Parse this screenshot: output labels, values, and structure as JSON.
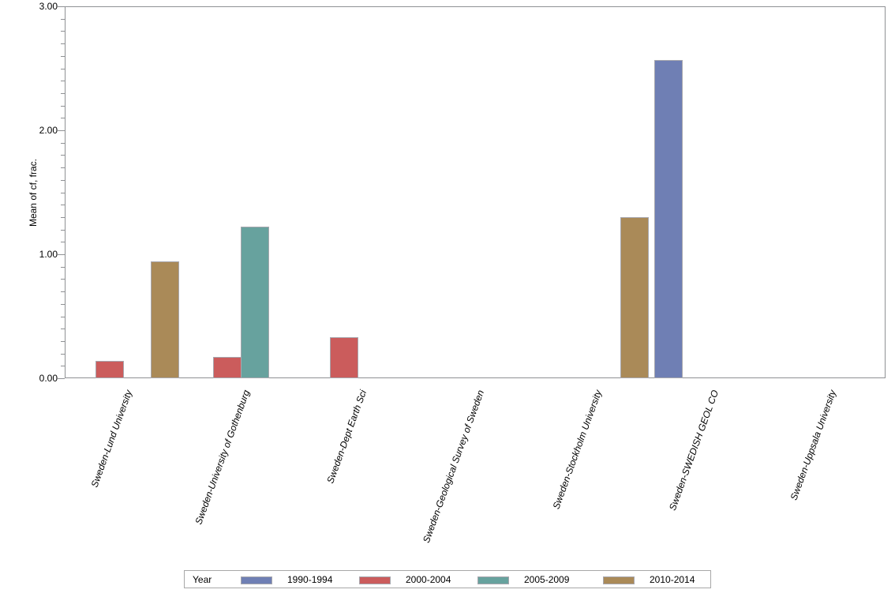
{
  "chart_data": {
    "type": "bar",
    "title": "",
    "xlabel": "",
    "ylabel": "Mean of cf, frac.",
    "ylim": [
      0,
      3
    ],
    "y_major_step": 1.0,
    "y_minor_step": 0.1,
    "y_tick_labels": [
      "0.00",
      "1.00",
      "2.00",
      "3.00"
    ],
    "grid": false,
    "legend": {
      "title": "Year",
      "position": "bottom"
    },
    "categories": [
      "Sweden-Lund University",
      "Sweden-University of Gothenburg",
      "Sweden-Dept Earth Sci",
      "Sweden-Geological Survey of Sweden",
      "Sweden-Stockholm University",
      "Sweden-SWEDISH GEOL CO",
      "Sweden-Uppsala University"
    ],
    "series": [
      {
        "name": "1990-1994",
        "color": "#6f7fb4",
        "values": [
          0,
          0,
          0,
          0,
          0,
          2.57,
          0
        ]
      },
      {
        "name": "2000-2004",
        "color": "#cb5c5c",
        "values": [
          0.14,
          0.17,
          0.33,
          0,
          0,
          0,
          0
        ]
      },
      {
        "name": "2005-2009",
        "color": "#67a29e",
        "values": [
          0,
          1.22,
          0,
          0,
          0,
          0,
          0
        ]
      },
      {
        "name": "2010-2014",
        "color": "#aa8a58",
        "values": [
          0.94,
          0,
          0,
          0,
          1.3,
          0,
          0
        ]
      }
    ],
    "colors": {
      "axis": "#8f9194",
      "bar_border": "#a7a7ae",
      "text": "#000000"
    }
  }
}
